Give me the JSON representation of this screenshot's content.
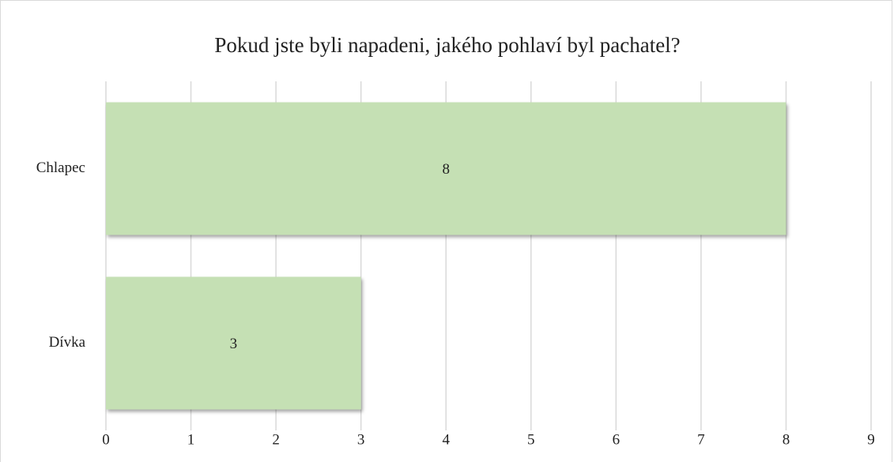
{
  "chart_data": {
    "type": "bar",
    "orientation": "horizontal",
    "title": "Pokud jste byli napadeni, jakého pohlaví byl pachatel?",
    "categories": [
      "Chlapec",
      "Dívka"
    ],
    "values": [
      8,
      3
    ],
    "color": "#c5e0b4",
    "xlim": [
      0,
      9
    ],
    "xticks": [
      0,
      1,
      2,
      3,
      4,
      5,
      6,
      7,
      8,
      9
    ],
    "grid": true
  }
}
